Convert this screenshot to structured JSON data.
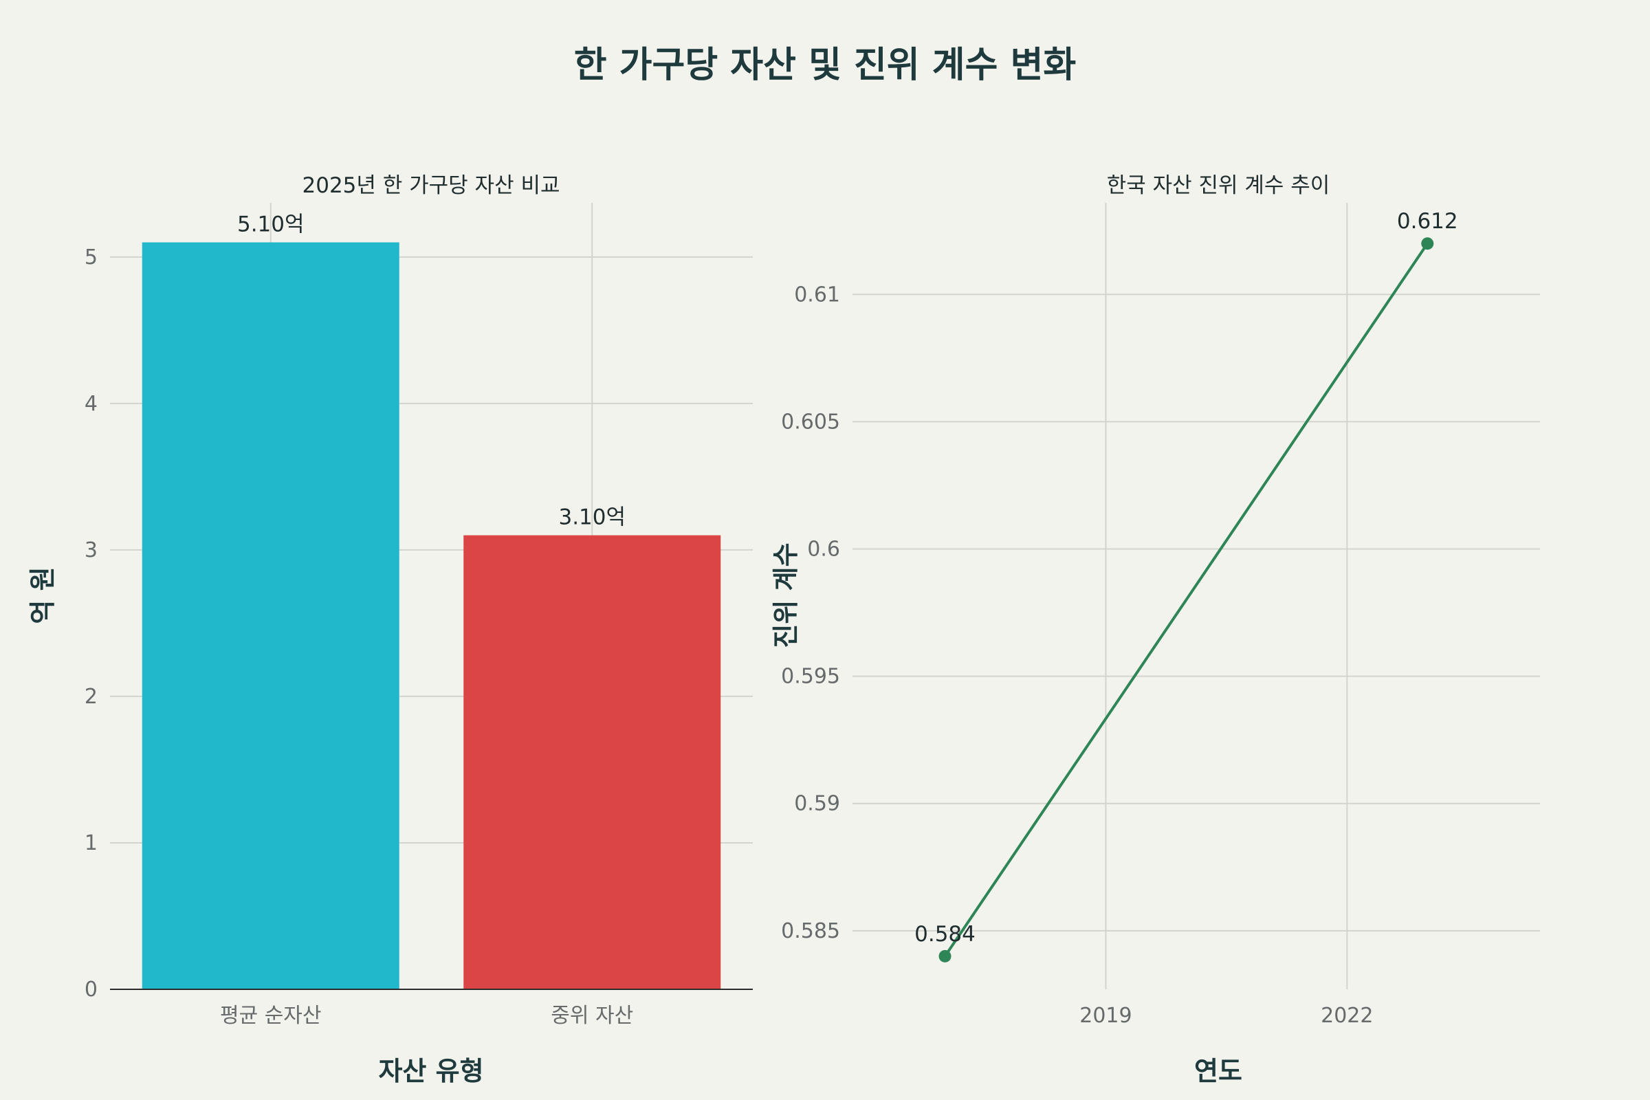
{
  "title": "한 가구당 자산 및 진위 계수 변화",
  "colors": {
    "background": "#f3f3ee",
    "bar_mean": "#21b8cc",
    "bar_median": "#db4545",
    "line": "#2e8555"
  },
  "chart_data": [
    {
      "type": "bar",
      "title": "2025년 한 가구당 자산 비교",
      "categories": [
        "평균 순자산",
        "중위 자산"
      ],
      "values": [
        5.1,
        3.1
      ],
      "data_labels": [
        "5.10억",
        "3.10억"
      ],
      "xlabel": "자산 유형",
      "ylabel": "억 원",
      "ylim": [
        0,
        5.37
      ],
      "yticks": [
        0,
        1,
        2,
        3,
        4,
        5
      ],
      "grid": true
    },
    {
      "type": "line",
      "title": "한국 자산 진위 계수 추이",
      "x": [
        2017,
        2023
      ],
      "y": [
        0.584,
        0.612
      ],
      "data_labels": [
        "0.584",
        "0.612"
      ],
      "xlabel": "연도",
      "ylabel": "진위 계수",
      "xlim": [
        2015.85,
        2024.4
      ],
      "ylim": [
        0.5827,
        0.6136
      ],
      "xticks": [
        2019,
        2022
      ],
      "yticks": [
        0.585,
        0.59,
        0.595,
        0.6,
        0.605,
        0.61
      ],
      "grid": true
    }
  ]
}
